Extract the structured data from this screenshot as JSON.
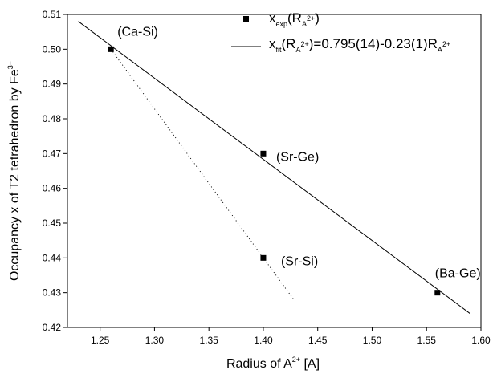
{
  "chart_data": {
    "type": "scatter",
    "xlabel": {
      "main": "Radius of A",
      "sup": "2+",
      "rest": " [A]"
    },
    "ylabel": {
      "main": "Occupancy x of T2 tetrahedron by Fe",
      "sup": "3+"
    },
    "xlim": [
      1.22,
      1.6
    ],
    "ylim": [
      0.42,
      0.51
    ],
    "x_ticks": [
      "1.25",
      "1.30",
      "1.35",
      "1.40",
      "1.45",
      "1.50",
      "1.55",
      "1.60"
    ],
    "y_ticks": [
      "0.42",
      "0.43",
      "0.44",
      "0.45",
      "0.46",
      "0.47",
      "0.48",
      "0.49",
      "0.50",
      "0.51"
    ],
    "grid": false,
    "legend_position": "top-right",
    "series": [
      {
        "kind": "points",
        "name": {
          "main": "x",
          "sub1": "exp",
          "mid": "(R",
          "sub2": "A",
          "sup2": "2+",
          "end": ")"
        },
        "points": [
          {
            "x": 1.26,
            "y": 0.5,
            "label": "(Ca-Si)"
          },
          {
            "x": 1.4,
            "y": 0.47,
            "label": "(Sr-Ge)"
          },
          {
            "x": 1.4,
            "y": 0.44,
            "label": "(Sr-Si)"
          },
          {
            "x": 1.56,
            "y": 0.43,
            "label": "(Ba-Ge)"
          }
        ]
      },
      {
        "kind": "fit-line",
        "name": {
          "main": "x",
          "sub1": "fit",
          "mid": "(R",
          "sub2": "A",
          "sup2": "2+",
          "end": ")=0.795(14)-0.23(1)R",
          "sub3": "A",
          "sup3": "2+"
        },
        "x": [
          1.23,
          1.59
        ],
        "y": [
          0.508,
          0.424
        ]
      },
      {
        "kind": "dotted-line",
        "x": [
          1.26,
          1.428
        ],
        "y": [
          0.5,
          0.428
        ]
      }
    ]
  }
}
